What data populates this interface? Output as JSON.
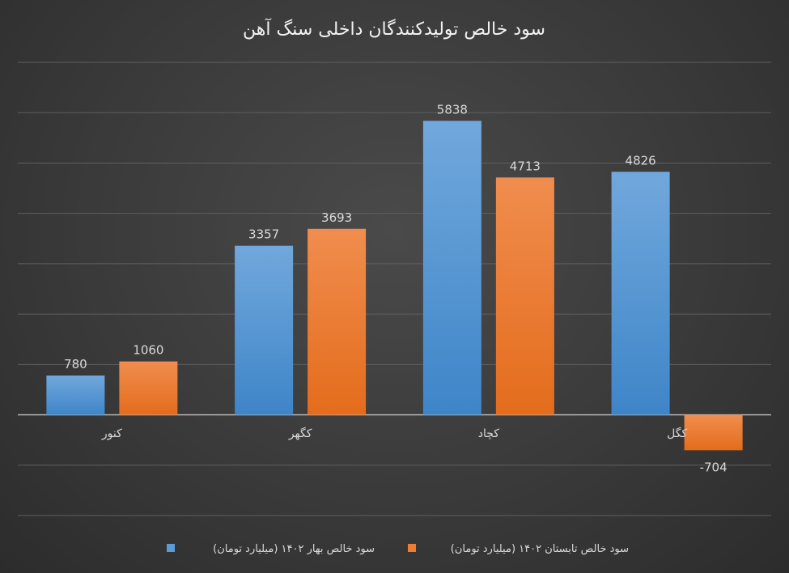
{
  "chart_data": {
    "type": "bar",
    "title": "سود خالص تولیدکنندگان داخلی سنگ آهن",
    "categories": [
      "کنور",
      "کگهر",
      "کچاد",
      "کگل"
    ],
    "series": [
      {
        "name": "سود خالص بهار ۱۴۰۲ (میلیارد تومان)",
        "values": [
          780,
          3357,
          5838,
          4826
        ],
        "color": "#5b9bd5"
      },
      {
        "name": "سود خالص تابستان ۱۴۰۲ (میلیارد تومان)",
        "values": [
          1060,
          3693,
          4713,
          -704
        ],
        "color": "#ed7d31"
      }
    ],
    "ylim": [
      -2000,
      7000
    ],
    "grid": true,
    "y_axis_labels_shown": false,
    "legend": "bottom",
    "data_labels": true
  }
}
